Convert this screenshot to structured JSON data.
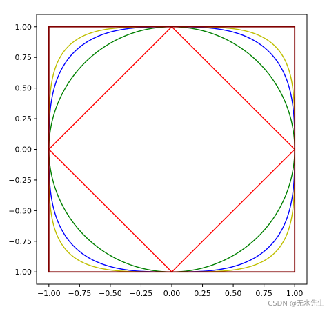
{
  "chart_data": {
    "type": "line",
    "title": "",
    "xlabel": "",
    "ylabel": "",
    "xlim": [
      -1.1,
      1.1
    ],
    "ylim": [
      -1.1,
      1.1
    ],
    "grid": false,
    "legend": "none",
    "x_ticks": [
      "−1.00",
      "−0.75",
      "−0.50",
      "−0.25",
      "0.00",
      "0.25",
      "0.50",
      "0.75",
      "1.00"
    ],
    "x_tick_values": [
      -1,
      -0.75,
      -0.5,
      -0.25,
      0,
      0.25,
      0.5,
      0.75,
      1
    ],
    "y_ticks": [
      "1.00",
      "0.75",
      "0.50",
      "0.25",
      "0.00",
      "−0.25",
      "−0.50",
      "−0.75",
      "−1.00"
    ],
    "y_tick_values": [
      1,
      0.75,
      0.5,
      0.25,
      0,
      -0.25,
      -0.5,
      -0.75,
      -1
    ],
    "series": [
      {
        "kind": "superellipse",
        "exponent": 1,
        "color": "#ff0000"
      },
      {
        "kind": "superellipse",
        "exponent": 2,
        "color": "#008000"
      },
      {
        "kind": "superellipse",
        "exponent": 3,
        "color": "#0000ff"
      },
      {
        "kind": "superellipse",
        "exponent": 4,
        "color": "#bfbf00"
      },
      {
        "kind": "superellipse",
        "exponent": "inf",
        "color": "#800000"
      }
    ]
  },
  "watermark": "CSDN @无水先生"
}
